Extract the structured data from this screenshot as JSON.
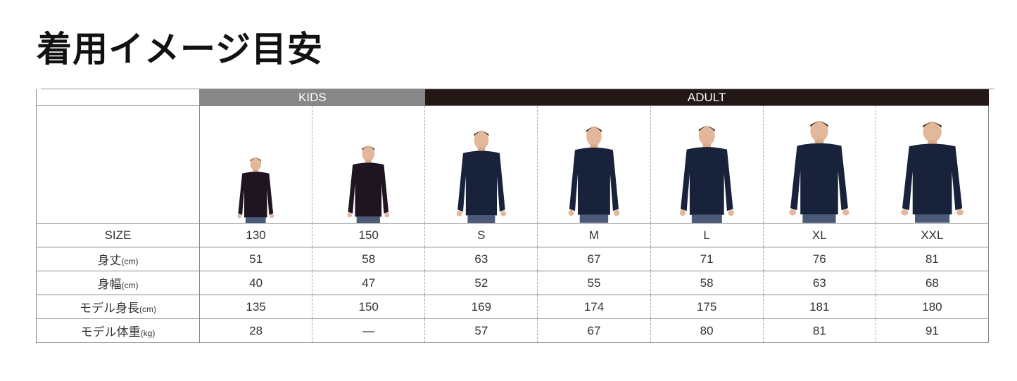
{
  "title": "着用イメージ目安",
  "groups": {
    "kids": "KIDS",
    "adult": "ADULT"
  },
  "colors": {
    "kids_header": "#878787",
    "adult_header": "#231815",
    "shirt": "#1b2235"
  },
  "model_heights_cm": [
    135,
    150,
    169,
    174,
    175,
    181,
    180
  ],
  "rows": [
    {
      "label": "SIZE",
      "unit": "",
      "values": [
        "130",
        "150",
        "S",
        "M",
        "L",
        "XL",
        "XXL"
      ]
    },
    {
      "label": "身丈",
      "unit": "(cm)",
      "values": [
        "51",
        "58",
        "63",
        "67",
        "71",
        "76",
        "81"
      ]
    },
    {
      "label": "身幅",
      "unit": "(cm)",
      "values": [
        "40",
        "47",
        "52",
        "55",
        "58",
        "63",
        "68"
      ]
    },
    {
      "label": "モデル身長",
      "unit": "(cm)",
      "values": [
        "135",
        "150",
        "169",
        "174",
        "175",
        "181",
        "180"
      ]
    },
    {
      "label": "モデル体重",
      "unit": "(kg)",
      "values": [
        "28",
        "—",
        "57",
        "67",
        "80",
        "81",
        "91"
      ]
    }
  ]
}
